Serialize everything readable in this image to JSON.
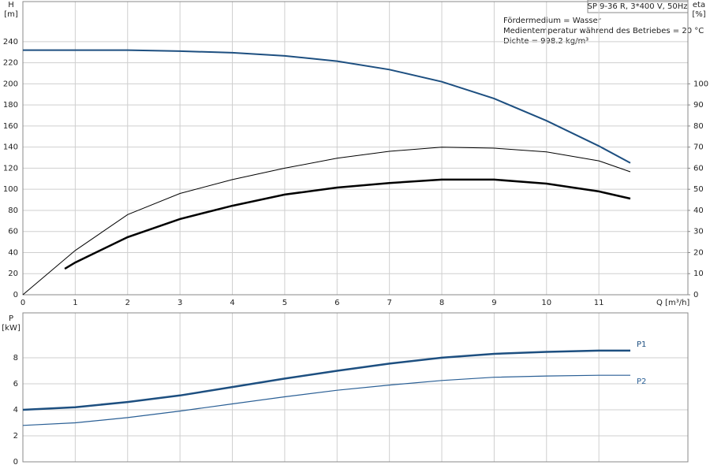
{
  "chart_data": [
    {
      "type": "line",
      "title": "SP 9-36 R, 3*400 V, 50Hz",
      "annotations": [
        "Fördermedium = Wasser",
        "Medientemperatur während des Betriebes = 20 °C",
        "Dichte = 998.2 kg/m³"
      ],
      "xlabel": "Q [m³/h]",
      "ylabel": "H",
      "yunit": "[m]",
      "y2label": "eta",
      "y2unit": "[%]",
      "xlim": [
        0,
        12.7
      ],
      "xticks": [
        0,
        1,
        2,
        3,
        4,
        5,
        6,
        7,
        8,
        9,
        10,
        11
      ],
      "ylim": [
        0,
        278
      ],
      "yticks": [
        0,
        20,
        40,
        60,
        80,
        100,
        120,
        140,
        160,
        180,
        200,
        220,
        240
      ],
      "y2lim": [
        0,
        139
      ],
      "y2ticks": [
        0,
        10,
        20,
        30,
        40,
        50,
        60,
        70,
        80,
        90,
        100
      ],
      "grid": true,
      "series": [
        {
          "color": "#1d4f80",
          "linewidth": 2,
          "x": [
            0,
            1,
            2,
            3,
            4,
            5,
            6,
            7,
            8,
            9,
            10,
            11,
            11.6
          ],
          "values": [
            232,
            232,
            232,
            231,
            229.5,
            226.5,
            221.5,
            213.5,
            202,
            186,
            165,
            141,
            125
          ]
        },
        {
          "color": "#000000",
          "linewidth": 1,
          "axis": "y2",
          "x": [
            0,
            1,
            2,
            3,
            4,
            5,
            6,
            7,
            8,
            9,
            10,
            11,
            11.6
          ],
          "values": [
            0,
            21,
            38,
            48,
            54.6,
            60,
            64.7,
            68,
            70,
            69.5,
            67.7,
            63.5,
            58.3
          ]
        },
        {
          "color": "#000000",
          "linewidth": 2.5,
          "axis": "y2",
          "x": [
            0.8,
            1,
            2,
            3,
            4,
            5,
            6,
            7,
            8,
            9,
            10,
            11,
            11.6
          ],
          "values": [
            12.3,
            15.3,
            27.3,
            35.9,
            42.2,
            47.5,
            50.8,
            53,
            54.6,
            54.6,
            52.7,
            49,
            45.6
          ]
        }
      ]
    },
    {
      "type": "line",
      "ylabel": "P",
      "yunit": "[kW]",
      "xlim": [
        0,
        12.7
      ],
      "xticks": [
        0,
        1,
        2,
        3,
        4,
        5,
        6,
        7,
        8,
        9,
        10,
        11
      ],
      "ylim": [
        0,
        11.45
      ],
      "yticks": [
        0,
        2,
        4,
        6,
        8
      ],
      "grid": true,
      "series": [
        {
          "name": "P1",
          "color": "#1d4f80",
          "linewidth": 2.5,
          "x": [
            0,
            1,
            2,
            3,
            4,
            5,
            6,
            7,
            8,
            9,
            10,
            11,
            11.6
          ],
          "values": [
            4.0,
            4.2,
            4.6,
            5.1,
            5.75,
            6.4,
            7.0,
            7.55,
            8.0,
            8.3,
            8.45,
            8.55,
            8.55
          ]
        },
        {
          "name": "P2",
          "color": "#2a5f95",
          "linewidth": 1.2,
          "x": [
            0,
            1,
            2,
            3,
            4,
            5,
            6,
            7,
            8,
            9,
            10,
            11,
            11.6
          ],
          "values": [
            2.8,
            3.0,
            3.4,
            3.9,
            4.45,
            5.0,
            5.5,
            5.9,
            6.25,
            6.5,
            6.6,
            6.65,
            6.65
          ]
        }
      ]
    }
  ]
}
